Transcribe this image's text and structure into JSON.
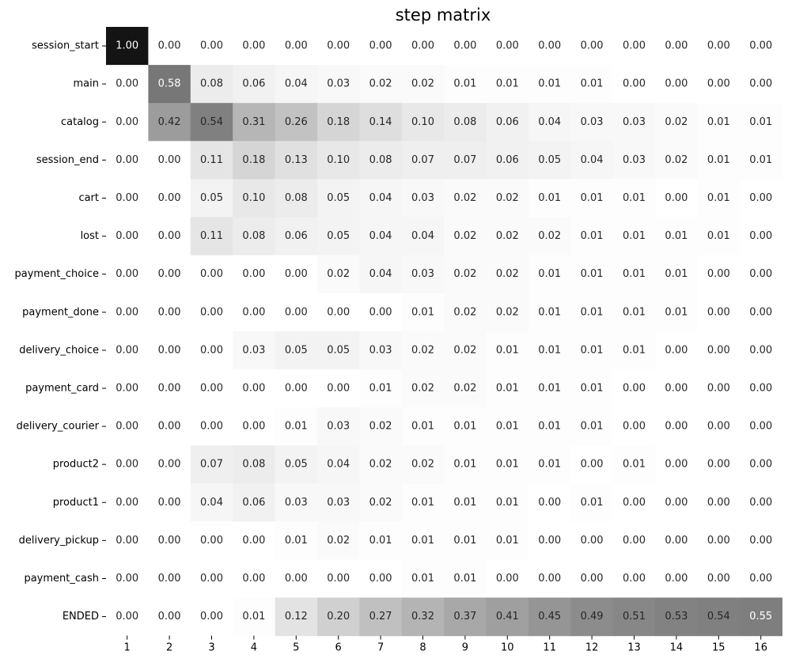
{
  "chart_data": {
    "type": "heatmap",
    "title": "step matrix",
    "xlabel": "",
    "ylabel": "",
    "colormap": "greys",
    "value_range": [
      0,
      1
    ],
    "x": [
      "1",
      "2",
      "3",
      "4",
      "5",
      "6",
      "7",
      "8",
      "9",
      "10",
      "11",
      "12",
      "13",
      "14",
      "15",
      "16"
    ],
    "y": [
      "session_start",
      "main",
      "catalog",
      "session_end",
      "cart",
      "lost",
      "payment_choice",
      "payment_done",
      "delivery_choice",
      "payment_card",
      "delivery_courier",
      "product2",
      "product1",
      "delivery_pickup",
      "payment_cash",
      "ENDED"
    ],
    "values": [
      [
        1.0,
        0.0,
        0.0,
        0.0,
        0.0,
        0.0,
        0.0,
        0.0,
        0.0,
        0.0,
        0.0,
        0.0,
        0.0,
        0.0,
        0.0,
        0.0
      ],
      [
        0.0,
        0.58,
        0.08,
        0.06,
        0.04,
        0.03,
        0.02,
        0.02,
        0.01,
        0.01,
        0.01,
        0.01,
        0.0,
        0.0,
        0.0,
        0.0
      ],
      [
        0.0,
        0.42,
        0.54,
        0.31,
        0.26,
        0.18,
        0.14,
        0.1,
        0.08,
        0.06,
        0.04,
        0.03,
        0.03,
        0.02,
        0.01,
        0.01
      ],
      [
        0.0,
        0.0,
        0.11,
        0.18,
        0.13,
        0.1,
        0.08,
        0.07,
        0.07,
        0.06,
        0.05,
        0.04,
        0.03,
        0.02,
        0.01,
        0.01
      ],
      [
        0.0,
        0.0,
        0.05,
        0.1,
        0.08,
        0.05,
        0.04,
        0.03,
        0.02,
        0.02,
        0.01,
        0.01,
        0.01,
        0.0,
        0.01,
        0.0
      ],
      [
        0.0,
        0.0,
        0.11,
        0.08,
        0.06,
        0.05,
        0.04,
        0.04,
        0.02,
        0.02,
        0.02,
        0.01,
        0.01,
        0.01,
        0.01,
        0.0
      ],
      [
        0.0,
        0.0,
        0.0,
        0.0,
        0.0,
        0.02,
        0.04,
        0.03,
        0.02,
        0.02,
        0.01,
        0.01,
        0.01,
        0.01,
        0.0,
        0.0
      ],
      [
        0.0,
        0.0,
        0.0,
        0.0,
        0.0,
        0.0,
        0.0,
        0.01,
        0.02,
        0.02,
        0.01,
        0.01,
        0.01,
        0.01,
        0.0,
        0.0
      ],
      [
        0.0,
        0.0,
        0.0,
        0.03,
        0.05,
        0.05,
        0.03,
        0.02,
        0.02,
        0.01,
        0.01,
        0.01,
        0.01,
        0.0,
        0.0,
        0.0
      ],
      [
        0.0,
        0.0,
        0.0,
        0.0,
        0.0,
        0.0,
        0.01,
        0.02,
        0.02,
        0.01,
        0.01,
        0.01,
        0.0,
        0.0,
        0.0,
        0.0
      ],
      [
        0.0,
        0.0,
        0.0,
        0.0,
        0.01,
        0.03,
        0.02,
        0.01,
        0.01,
        0.01,
        0.01,
        0.01,
        0.0,
        0.0,
        0.0,
        0.0
      ],
      [
        0.0,
        0.0,
        0.07,
        0.08,
        0.05,
        0.04,
        0.02,
        0.02,
        0.01,
        0.01,
        0.01,
        0.0,
        0.01,
        0.0,
        0.0,
        0.0
      ],
      [
        0.0,
        0.0,
        0.04,
        0.06,
        0.03,
        0.03,
        0.02,
        0.01,
        0.01,
        0.01,
        0.0,
        0.01,
        0.0,
        0.0,
        0.0,
        0.0
      ],
      [
        0.0,
        0.0,
        0.0,
        0.0,
        0.01,
        0.02,
        0.01,
        0.01,
        0.01,
        0.01,
        0.0,
        0.0,
        0.0,
        0.0,
        0.0,
        0.0
      ],
      [
        0.0,
        0.0,
        0.0,
        0.0,
        0.0,
        0.0,
        0.0,
        0.01,
        0.01,
        0.0,
        0.0,
        0.0,
        0.0,
        0.0,
        0.0,
        0.0
      ],
      [
        0.0,
        0.0,
        0.0,
        0.01,
        0.12,
        0.2,
        0.27,
        0.32,
        0.37,
        0.41,
        0.45,
        0.49,
        0.51,
        0.53,
        0.54,
        0.55
      ]
    ],
    "grid": false,
    "colorbar": false
  }
}
